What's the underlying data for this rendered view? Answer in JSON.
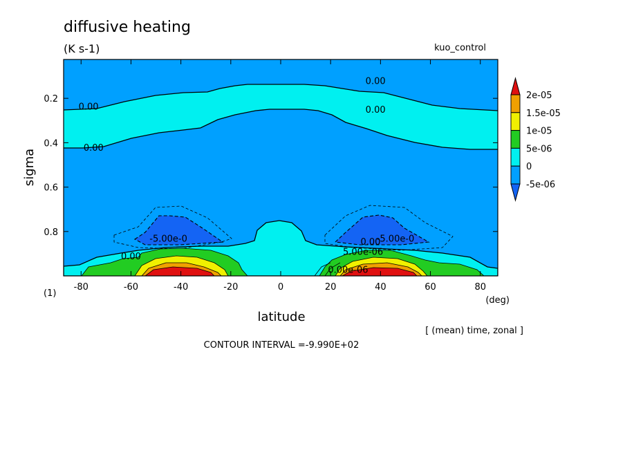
{
  "title": "diffusive heating",
  "units": "(K s-1)",
  "run_name": "kuo_control",
  "averaging_note": "[ (mean) time, zonal ]",
  "contour_interval": "CONTOUR INTERVAL =-9.990E+02",
  "frame_index": "(1)",
  "chart_data": {
    "type": "heatmap",
    "subtype": "filled-contour",
    "xlabel": "latitude",
    "xunit": "(deg)",
    "ylabel": "sigma",
    "xlim": [
      -87,
      87
    ],
    "ylim": [
      1.0,
      0.025
    ],
    "y_inverted": true,
    "x_ticks": [
      -80,
      -60,
      -40,
      -20,
      0,
      20,
      40,
      60,
      80
    ],
    "x_tick_labels": [
      "-80",
      "-60",
      "-40",
      "-20",
      "0",
      "20",
      "40",
      "60",
      "80"
    ],
    "y_ticks": [
      0.2,
      0.4,
      0.6,
      0.8
    ],
    "y_tick_labels": [
      "0.2",
      "0.4",
      "0.6",
      "0.8"
    ],
    "colorbar": {
      "levels": [
        -5e-06,
        0,
        5e-06,
        1e-05,
        1.5e-05,
        2e-05
      ],
      "labels": [
        "-5e-06",
        "0",
        "5e-06",
        "1e-05",
        "1.5e-05",
        "2e-05"
      ],
      "colors": [
        "#1464f4",
        "#00a0ff",
        "#00f0f0",
        "#22cc22",
        "#f0f000",
        "#f0a000",
        "#e01010"
      ]
    },
    "contour_labels": [
      {
        "text": "0.00",
        "lat": -77,
        "sigma": 0.235
      },
      {
        "text": "0.00",
        "lat": -75,
        "sigma": 0.42
      },
      {
        "text": "0.00",
        "lat": 38,
        "sigma": 0.12
      },
      {
        "text": "0.00",
        "lat": 38,
        "sigma": 0.25
      },
      {
        "text": "-5.00e-0",
        "lat": -45,
        "sigma": 0.83
      },
      {
        "text": "-5.00e-0",
        "lat": 46,
        "sigma": 0.83
      },
      {
        "text": "0.00",
        "lat": 36,
        "sigma": 0.845
      },
      {
        "text": "0.00",
        "lat": -60,
        "sigma": 0.91
      },
      {
        "text": "5.00e-06",
        "lat": 33,
        "sigma": 0.89
      },
      {
        "text": "0.00e-06",
        "lat": 27,
        "sigma": 0.97
      }
    ]
  }
}
